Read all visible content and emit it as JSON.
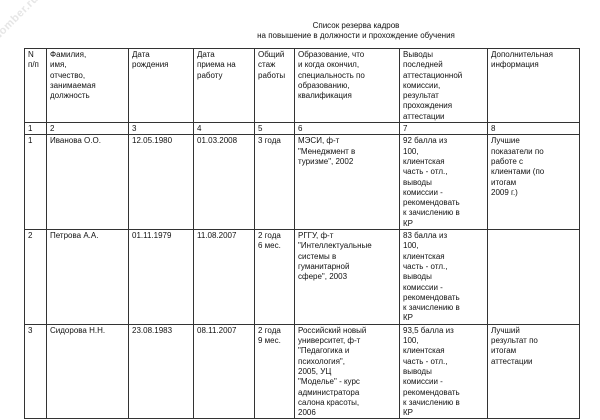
{
  "watermark": "Nomber.ru",
  "title": [
    "Список резерва кадров",
    "на повышение в должности и прохождение обучения"
  ],
  "headers": [
    "N\nп/п",
    "Фамилия,\nимя,\nотчество,\nзанимаемая\nдолжность",
    "Дата\nрождения",
    "Дата\nприема на\nработу",
    "Общий\nстаж\nработы",
    "Образование, что\nи когда окончил,\nспециальность по\nобразованию,\nквалификация",
    "Выводы\nпоследней\nаттестационной\nкомиссии,\nрезультат\nпрохождения\nаттестации",
    "Дополнительная\nинформация"
  ],
  "column_numbers": [
    "1",
    "2",
    "3",
    "4",
    "5",
    "6",
    "7",
    "8"
  ],
  "rows": [
    [
      "1",
      "Иванова О.О.",
      "12.05.1980",
      "01.03.2008",
      "3 года",
      "МЭСИ, ф-т\n\"Менеджмент в\nтуризме\", 2002",
      "92 балла из\n100,\nклиентская\nчасть - отл.,\nвыводы\nкомиссии -\nрекомендовать\nк зачислению в\nКР",
      "Лучшие\nпоказатели по\nработе с\nклиентами (по\nитогам\n2009 г.)"
    ],
    [
      "2",
      "Петрова А.А.",
      "01.11.1979",
      "11.08.2007",
      "2 года\n6 мес.",
      "РГГУ, ф-т\n\"Интеллектуальные\nсистемы в\nгуманитарной\nсфере\", 2003",
      "83 балла из\n100,\nклиентская\nчасть - отл.,\nвыводы\nкомиссии -\nрекомендовать\nк зачислению в\nКР",
      ""
    ],
    [
      "3",
      "Сидорова Н.Н.",
      "23.08.1983",
      "08.11.2007",
      "2 года\n9 мес.",
      "Российский новый\nуниверситет, ф-т\n\"Педагогика и\nпсихология\",\n2005, УЦ\n\"Моделье\" - курс\nадминистратора\nсалона красоты,\n2006",
      "93,5 балла из\n100,\nклиентская\nчасть - отл.,\nвыводы\nкомиссии -\nрекомендовать\nк зачислению в\nКР",
      "Лучший\nрезультат по\nитогам\nаттестации"
    ]
  ]
}
